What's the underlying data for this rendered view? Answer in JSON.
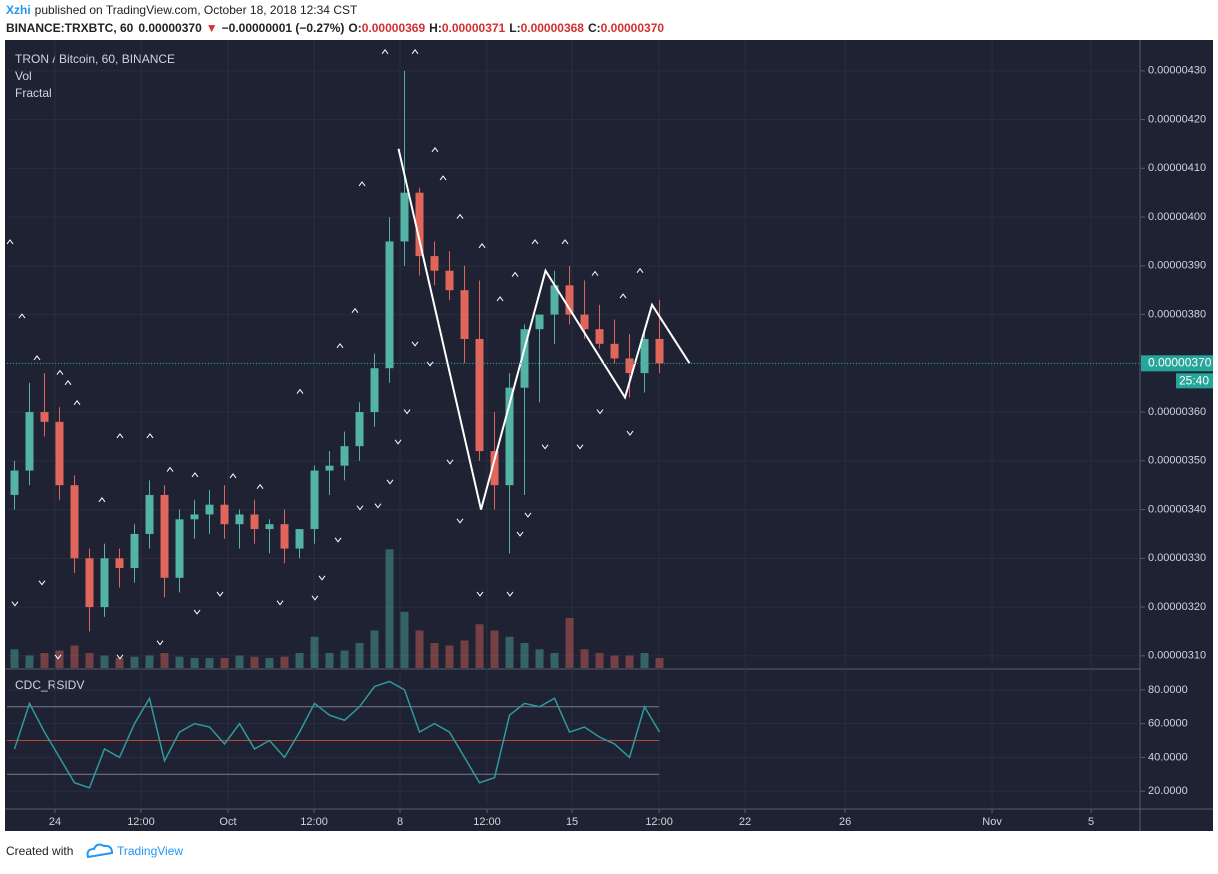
{
  "header": {
    "author": "Xzhi",
    "published": "published on TradingView.com, October 18, 2018 12:34 CST",
    "symbol": "BINANCE:TRXBTC, 60",
    "last": "0.00000370",
    "arrow": "▼",
    "change": "−0.00000001 (−0.27%)",
    "o_label": "O:",
    "o": "0.00000369",
    "h_label": "H:",
    "h": "0.00000371",
    "l_label": "L:",
    "l": "0.00000368",
    "c_label": "C:",
    "c": "0.00000370"
  },
  "footer": {
    "created": "Created with",
    "brand": "TradingView"
  },
  "chart_data": [
    {
      "type": "candlestick",
      "title": "TRON / Bitcoin, 60, BINANCE",
      "up_color": "#53b3a5",
      "down_color": "#e0665c",
      "x": [
        0.5,
        1.5,
        2.5,
        3.5,
        4.5,
        5.5,
        6.5,
        7.5,
        8.5,
        9.5,
        10.5,
        11.5,
        12.5,
        13.5,
        14.5,
        15.5,
        16.5,
        17.5,
        18.5,
        19.5,
        20.5,
        21.5,
        22.5,
        23.5,
        24.5,
        25.5,
        26.5,
        27.5,
        28.5,
        29.5,
        30.5,
        31.5,
        32.5,
        33.5,
        34.5,
        35.5,
        36.5,
        37.5,
        38.5,
        39.5,
        40.5,
        41.5,
        42.5,
        43.5
      ],
      "open": [
        3.43e-06,
        3.48e-06,
        3.6e-06,
        3.58e-06,
        3.45e-06,
        3.3e-06,
        3.2e-06,
        3.3e-06,
        3.28e-06,
        3.35e-06,
        3.43e-06,
        3.26e-06,
        3.38e-06,
        3.39e-06,
        3.41e-06,
        3.37e-06,
        3.39e-06,
        3.36e-06,
        3.37e-06,
        3.32e-06,
        3.36e-06,
        3.48e-06,
        3.49e-06,
        3.53e-06,
        3.6e-06,
        3.69e-06,
        3.95e-06,
        4.05e-06,
        3.92e-06,
        3.89e-06,
        3.85e-06,
        3.75e-06,
        3.52e-06,
        3.45e-06,
        3.65e-06,
        3.77e-06,
        3.8e-06,
        3.86e-06,
        3.8e-06,
        3.77e-06,
        3.74e-06,
        3.71e-06,
        3.68e-06,
        3.75e-06
      ],
      "high": [
        3.5e-06,
        3.66e-06,
        3.68e-06,
        3.61e-06,
        3.47e-06,
        3.32e-06,
        3.33e-06,
        3.32e-06,
        3.37e-06,
        3.46e-06,
        3.45e-06,
        3.4e-06,
        3.42e-06,
        3.44e-06,
        3.45e-06,
        3.4e-06,
        3.42e-06,
        3.38e-06,
        3.4e-06,
        3.36e-06,
        3.49e-06,
        3.52e-06,
        3.56e-06,
        3.62e-06,
        3.72e-06,
        4e-06,
        4.3e-06,
        4.06e-06,
        3.95e-06,
        3.93e-06,
        3.9e-06,
        3.87e-06,
        3.6e-06,
        3.68e-06,
        3.78e-06,
        3.8e-06,
        3.89e-06,
        3.9e-06,
        3.87e-06,
        3.82e-06,
        3.79e-06,
        3.76e-06,
        3.77e-06,
        3.83e-06
      ],
      "low": [
        3.4e-06,
        3.45e-06,
        3.55e-06,
        3.42e-06,
        3.27e-06,
        3.15e-06,
        3.18e-06,
        3.24e-06,
        3.25e-06,
        3.32e-06,
        3.22e-06,
        3.23e-06,
        3.34e-06,
        3.35e-06,
        3.34e-06,
        3.32e-06,
        3.33e-06,
        3.31e-06,
        3.29e-06,
        3.3e-06,
        3.33e-06,
        3.43e-06,
        3.46e-06,
        3.5e-06,
        3.57e-06,
        3.66e-06,
        3.9e-06,
        3.88e-06,
        3.86e-06,
        3.83e-06,
        3.7e-06,
        3.5e-06,
        3.4e-06,
        3.31e-06,
        3.43e-06,
        3.62e-06,
        3.74e-06,
        3.78e-06,
        3.75e-06,
        3.73e-06,
        3.7e-06,
        3.63e-06,
        3.64e-06,
        3.68e-06
      ],
      "close": [
        3.48e-06,
        3.6e-06,
        3.58e-06,
        3.45e-06,
        3.3e-06,
        3.2e-06,
        3.3e-06,
        3.28e-06,
        3.35e-06,
        3.43e-06,
        3.26e-06,
        3.38e-06,
        3.39e-06,
        3.41e-06,
        3.37e-06,
        3.39e-06,
        3.36e-06,
        3.37e-06,
        3.32e-06,
        3.36e-06,
        3.48e-06,
        3.49e-06,
        3.53e-06,
        3.6e-06,
        3.69e-06,
        3.95e-06,
        4.05e-06,
        3.92e-06,
        3.89e-06,
        3.85e-06,
        3.75e-06,
        3.52e-06,
        3.45e-06,
        3.65e-06,
        3.77e-06,
        3.8e-06,
        3.86e-06,
        3.8e-06,
        3.77e-06,
        3.74e-06,
        3.71e-06,
        3.68e-06,
        3.75e-06,
        3.7e-06
      ],
      "volume": {
        "name": "Vol",
        "ylim": [
          0,
          100
        ],
        "values": [
          15,
          10,
          12,
          14,
          18,
          12,
          10,
          8,
          9,
          10,
          12,
          9,
          8,
          8,
          8,
          10,
          9,
          8,
          9,
          12,
          25,
          12,
          14,
          20,
          30,
          95,
          45,
          30,
          20,
          18,
          22,
          35,
          30,
          25,
          20,
          15,
          12,
          40,
          15,
          12,
          10,
          10,
          12,
          8
        ]
      },
      "fractal": {
        "name": "Fractal",
        "color": "#ffffff",
        "up": {
          "x": [
            0.2,
            1.0,
            2.0,
            3.53,
            4.07,
            4.67,
            6.33,
            7.53,
            9.53,
            10.87,
            12.53,
            15.07,
            16.87,
            19.53,
            22.2,
            23.2,
            23.67,
            25.2,
            27.2,
            28.53,
            29.07,
            30.2,
            31.67,
            32.87,
            33.87,
            35.2,
            37.2,
            39.2,
            41.07,
            42.2
          ],
          "values": [
            3.949e-06,
            3.797e-06,
            3.711e-06,
            3.681e-06,
            3.66e-06,
            3.619e-06,
            3.42e-06,
            3.551e-06,
            3.551e-06,
            3.482e-06,
            3.471e-06,
            3.469e-06,
            3.447e-06,
            3.642e-06,
            3.736e-06,
            3.808e-06,
            4.068e-06,
            4.339e-06,
            4.339e-06,
            4.138e-06,
            4.08e-06,
            4.001e-06,
            3.941e-06,
            3.832e-06,
            3.882e-06,
            3.949e-06,
            3.949e-06,
            3.884e-06,
            3.838e-06,
            3.89e-06
          ]
        },
        "down": {
          "x": [
            0.53,
            2.33,
            3.4,
            7.53,
            10.2,
            12.67,
            14.2,
            18.2,
            20.53,
            21.0,
            22.07,
            23.53,
            24.73,
            25.53,
            26.07,
            26.67,
            27.2,
            28.2,
            29.53,
            30.2,
            31.53,
            33.53,
            34.2,
            34.73,
            35.87,
            38.2,
            39.53,
            41.53
          ],
          "values": [
            3.207e-06,
            3.25e-06,
            3.098e-06,
            3.098e-06,
            3.127e-06,
            3.19e-06,
            3.227e-06,
            3.209e-06,
            3.219e-06,
            3.26e-06,
            3.338e-06,
            3.404e-06,
            3.408e-06,
            3.457e-06,
            3.539e-06,
            3.601e-06,
            3.74e-06,
            3.699e-06,
            3.498e-06,
            3.377e-06,
            3.227e-06,
            3.227e-06,
            3.35e-06,
            3.389e-06,
            3.529e-06,
            3.529e-06,
            3.601e-06,
            3.557e-06
          ]
        }
      },
      "zigzag": {
        "color": "#ffffff",
        "x": [
          26.1,
          31.6,
          35.9,
          41.2,
          43.0,
          45.5
        ],
        "values": [
          4.14e-06,
          3.4e-06,
          3.89e-06,
          3.63e-06,
          3.82e-06,
          3.7e-06
        ]
      },
      "price_line": {
        "value": 3.7e-06,
        "label": "0.00000370",
        "countdown": "25:40",
        "color": "#26a69a"
      },
      "xlim": [
        0,
        75.53
      ],
      "ylim": [
        3.075e-06,
        4.353e-06
      ],
      "xticks": [
        {
          "value": 3.2,
          "label": "24"
        },
        {
          "value": 8.93,
          "label": "12:00"
        },
        {
          "value": 14.73,
          "label": "Oct"
        },
        {
          "value": 20.47,
          "label": "12:00"
        },
        {
          "value": 26.2,
          "label": "8"
        },
        {
          "value": 32.0,
          "label": "12:00"
        },
        {
          "value": 37.67,
          "label": "15"
        },
        {
          "value": 43.47,
          "label": "12:00"
        },
        {
          "value": 49.2,
          "label": "22"
        },
        {
          "value": 55.87,
          "label": "26"
        },
        {
          "value": 65.67,
          "label": "Nov"
        },
        {
          "value": 72.27,
          "label": "5"
        }
      ],
      "yticks": [
        {
          "value": 3.1e-06,
          "label": "0.00000310"
        },
        {
          "value": 3.2e-06,
          "label": "0.00000320"
        },
        {
          "value": 3.3e-06,
          "label": "0.00000330"
        },
        {
          "value": 3.4e-06,
          "label": "0.00000340"
        },
        {
          "value": 3.5e-06,
          "label": "0.00000350"
        },
        {
          "value": 3.6e-06,
          "label": "0.00000360"
        },
        {
          "value": 3.7e-06,
          "label": "0.00000370"
        },
        {
          "value": 3.8e-06,
          "label": "0.00000380"
        },
        {
          "value": 3.9e-06,
          "label": "0.00000390"
        },
        {
          "value": 4e-06,
          "label": "0.00000400"
        },
        {
          "value": 4.1e-06,
          "label": "0.00000410"
        },
        {
          "value": 4.2e-06,
          "label": "0.00000420"
        },
        {
          "value": 4.3e-06,
          "label": "0.00000430"
        }
      ],
      "grid": true
    },
    {
      "type": "line",
      "title": "CDC_RSIDV",
      "color": "#2f9a9c",
      "x": [
        0.5,
        1.5,
        2.5,
        3.5,
        4.5,
        5.5,
        6.5,
        7.5,
        8.5,
        9.5,
        10.5,
        11.5,
        12.5,
        13.5,
        14.5,
        15.5,
        16.5,
        17.5,
        18.5,
        19.5,
        20.5,
        21.5,
        22.5,
        23.5,
        24.5,
        25.5,
        26.5,
        27.5,
        28.5,
        29.5,
        30.5,
        31.5,
        32.5,
        33.5,
        34.5,
        35.5,
        36.5,
        37.5,
        38.5,
        39.5,
        40.5,
        41.5,
        42.5,
        43.5
      ],
      "values": [
        45,
        72,
        55,
        40,
        25,
        22,
        45,
        40,
        60,
        75,
        38,
        55,
        60,
        58,
        48,
        60,
        45,
        50,
        40,
        55,
        72,
        65,
        62,
        70,
        82,
        85,
        80,
        55,
        60,
        55,
        40,
        25,
        28,
        65,
        72,
        70,
        75,
        55,
        58,
        52,
        48,
        40,
        70,
        55
      ],
      "levels": [
        70,
        50,
        30
      ],
      "level_colors": [
        "#7a7d88",
        "#b8463e",
        "#7a7d88"
      ],
      "xlim": [
        0,
        75.53
      ],
      "ylim": [
        11.2,
        90.6
      ],
      "yticks": [
        {
          "value": 20,
          "label": "20.0000"
        },
        {
          "value": 40,
          "label": "40.0000"
        },
        {
          "value": 60,
          "label": "60.0000"
        },
        {
          "value": 80,
          "label": "80.0000"
        }
      ],
      "grid": true
    }
  ]
}
